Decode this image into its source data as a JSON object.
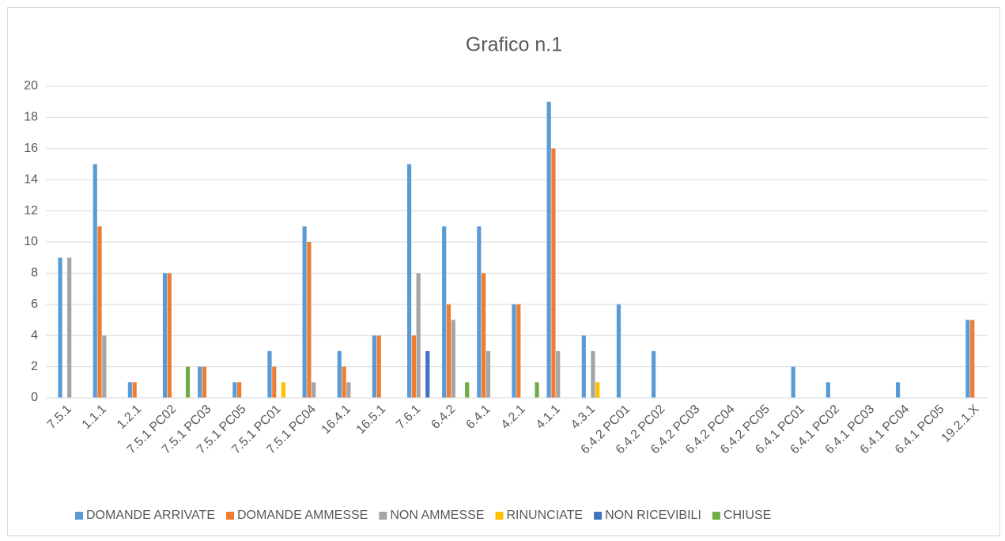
{
  "chart_data": {
    "type": "bar",
    "title": "Grafico n.1",
    "categories": [
      "7.5.1",
      "1.1.1",
      "1.2.1",
      "7.5.1 PC02",
      "7.5.1 PC03",
      "7.5.1 PC05",
      "7.5.1 PC01",
      "7.5.1 PC04",
      "16.4.1",
      "16.5.1",
      "7.6.1",
      "6.4.2",
      "6.4.1",
      "4.2.1",
      "4.1.1",
      "4.3.1",
      "6.4.2 PC01",
      "6.4.2 PC02",
      "6.4.2 PC03",
      "6.4.2 PC04",
      "6.4.2 PC05",
      "6.4.1 PC01",
      "6.4.1 PC02",
      "6.4.1 PC03",
      "6.4.1 PC04",
      "6.4.1 PC05",
      "19.2.1.X"
    ],
    "series": [
      {
        "name": "DOMANDE ARRIVATE",
        "color": "#5b9bd5",
        "values": [
          9,
          15,
          1,
          8,
          2,
          1,
          3,
          11,
          3,
          4,
          15,
          11,
          11,
          6,
          19,
          4,
          6,
          3,
          0,
          0,
          0,
          2,
          1,
          0,
          1,
          0,
          5
        ]
      },
      {
        "name": "DOMANDE AMMESSE",
        "color": "#ed7d31",
        "values": [
          0,
          11,
          1,
          8,
          2,
          1,
          2,
          10,
          2,
          4,
          4,
          6,
          8,
          6,
          16,
          0,
          0,
          0,
          0,
          0,
          0,
          0,
          0,
          0,
          0,
          0,
          5
        ]
      },
      {
        "name": "NON AMMESSE",
        "color": "#a5a5a5",
        "values": [
          9,
          4,
          0,
          0,
          0,
          0,
          0,
          1,
          1,
          0,
          8,
          5,
          3,
          0,
          3,
          3,
          0,
          0,
          0,
          0,
          0,
          0,
          0,
          0,
          0,
          0,
          0
        ]
      },
      {
        "name": "RINUNCIATE",
        "color": "#ffc000",
        "values": [
          0,
          0,
          0,
          0,
          0,
          0,
          1,
          0,
          0,
          0,
          0,
          0,
          0,
          0,
          0,
          1,
          0,
          0,
          0,
          0,
          0,
          0,
          0,
          0,
          0,
          0,
          0
        ]
      },
      {
        "name": "NON RICEVIBILI",
        "color": "#4472c4",
        "values": [
          0,
          0,
          0,
          0,
          0,
          0,
          0,
          0,
          0,
          0,
          3,
          0,
          0,
          0,
          0,
          0,
          0,
          0,
          0,
          0,
          0,
          0,
          0,
          0,
          0,
          0,
          0
        ]
      },
      {
        "name": "CHIUSE",
        "color": "#70ad47",
        "values": [
          0,
          0,
          0,
          2,
          0,
          0,
          0,
          0,
          0,
          0,
          0,
          1,
          0,
          1,
          0,
          0,
          0,
          0,
          0,
          0,
          0,
          0,
          0,
          0,
          0,
          0,
          0
        ]
      }
    ],
    "ylim": [
      0,
      20
    ],
    "yticks": [
      0,
      2,
      4,
      6,
      8,
      10,
      12,
      14,
      16,
      18,
      20
    ],
    "grid": true,
    "legend": "bottom"
  }
}
